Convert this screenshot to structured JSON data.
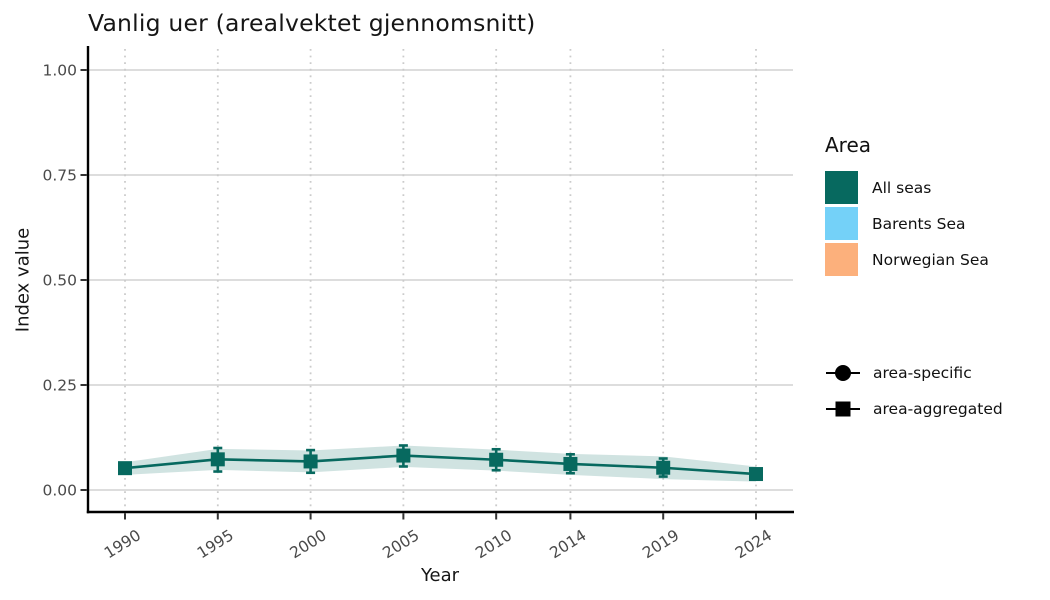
{
  "chart_data": {
    "type": "line",
    "title": "Vanlig uer (arealvektet gjennomsnitt)",
    "xlabel": "Year",
    "ylabel": "Index value",
    "x": [
      1990,
      1995,
      2000,
      2005,
      2010,
      2014,
      2019,
      2024
    ],
    "x_tick_labels": [
      "1990",
      "1995",
      "2000",
      "2005",
      "2010",
      "2014",
      "2019",
      "2024"
    ],
    "y_ticks": [
      0,
      0.25,
      0.5,
      0.75,
      1
    ],
    "y_tick_labels": [
      "0.00",
      "0.25",
      "0.50",
      "0.75",
      "1.00"
    ],
    "ylim": [
      0,
      1
    ],
    "grid": {
      "horizontal": "solid",
      "vertical": "dotted"
    },
    "legend_position": "right",
    "series": [
      {
        "name": "All seas",
        "marker": "square",
        "marker_meaning": "area-aggregated",
        "color": "#07695F",
        "ribbon_color": "rgba(7,105,95,0.19)",
        "values": [
          0.052,
          0.073,
          0.068,
          0.082,
          0.072,
          0.062,
          0.053,
          0.038
        ],
        "ribbon_lower": [
          0.036,
          0.048,
          0.042,
          0.055,
          0.046,
          0.036,
          0.026,
          0.02
        ],
        "ribbon_upper": [
          0.066,
          0.098,
          0.094,
          0.106,
          0.096,
          0.086,
          0.08,
          0.056
        ],
        "err_lo": [
          0.042,
          0.044,
          0.041,
          0.056,
          0.047,
          0.04,
          0.032,
          0.028
        ],
        "err_hi": [
          0.062,
          0.1,
          0.095,
          0.106,
          0.097,
          0.085,
          0.075,
          0.048
        ]
      }
    ]
  },
  "legend_area": {
    "title": "Area",
    "items": [
      {
        "label": "All seas",
        "color": "#07695F"
      },
      {
        "label": "Barents Sea",
        "color": "#74D1F8"
      },
      {
        "label": "Norwegian Sea",
        "color": "#FCB07C"
      }
    ]
  },
  "legend_shape": {
    "items": [
      {
        "label": "area-specific",
        "shape": "circle"
      },
      {
        "label": "area-aggregated",
        "shape": "square"
      }
    ]
  }
}
